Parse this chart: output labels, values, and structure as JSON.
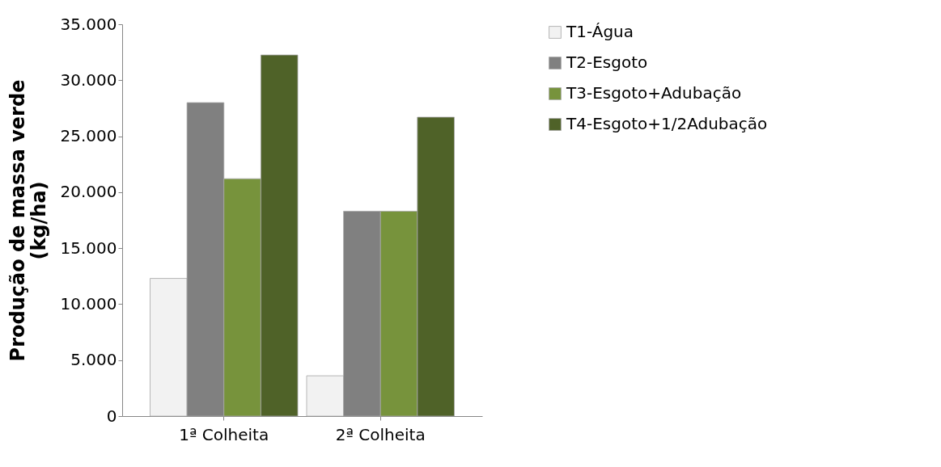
{
  "chart_data": {
    "type": "bar",
    "ylabel": "Produção de massa verde\n(kg/ha)",
    "categories": [
      "1ª Colheita",
      "2ª Colheita"
    ],
    "series": [
      {
        "name": "T1-Água",
        "color": "#f2f2f2",
        "values": [
          12300,
          3600
        ]
      },
      {
        "name": "T2-Esgoto",
        "color": "#808080",
        "values": [
          28000,
          18300
        ]
      },
      {
        "name": "T3-Esgoto+Adubação",
        "color": "#77933c",
        "values": [
          21200,
          18300
        ]
      },
      {
        "name": "T4-Esgoto+1/2Adubação",
        "color": "#4f6228",
        "values": [
          32250,
          26700
        ]
      }
    ],
    "ylim": [
      0,
      35000
    ],
    "yticks": [
      0,
      {
        "value": 5000,
        "label": "5.000"
      },
      {
        "value": 10000,
        "label": "10.000"
      },
      {
        "value": 15000,
        "label": "15.000"
      },
      {
        "value": 20000,
        "label": "20.000"
      },
      {
        "value": 25000,
        "label": "25.000"
      },
      {
        "value": 30000,
        "label": "30.000"
      },
      {
        "value": 35000,
        "label": "35.000"
      }
    ],
    "grid": false,
    "legend": "right"
  }
}
